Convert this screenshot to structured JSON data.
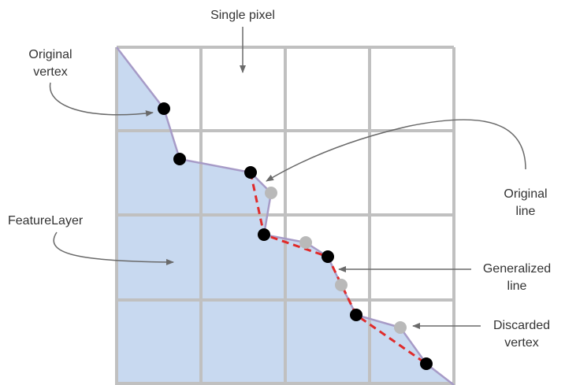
{
  "labels": {
    "single_pixel": "Single pixel",
    "original_vertex": [
      "Original",
      "vertex"
    ],
    "feature_layer": "FeatureLayer",
    "original_line": [
      "Original",
      "line"
    ],
    "generalized_line": [
      "Generalized",
      "line"
    ],
    "discarded_vertex": [
      "Discarded",
      "vertex"
    ]
  },
  "colors": {
    "grid": "#c0c0c0",
    "fill": "#c8d9f0",
    "original_line": "#a79bc7",
    "generalized_line": "#e02b2b",
    "kept_vertex": "#000000",
    "discarded_vertex": "#b9b9b9",
    "callout": "#6a6a6a"
  },
  "grid": {
    "rows": 4,
    "columns": 4
  }
}
